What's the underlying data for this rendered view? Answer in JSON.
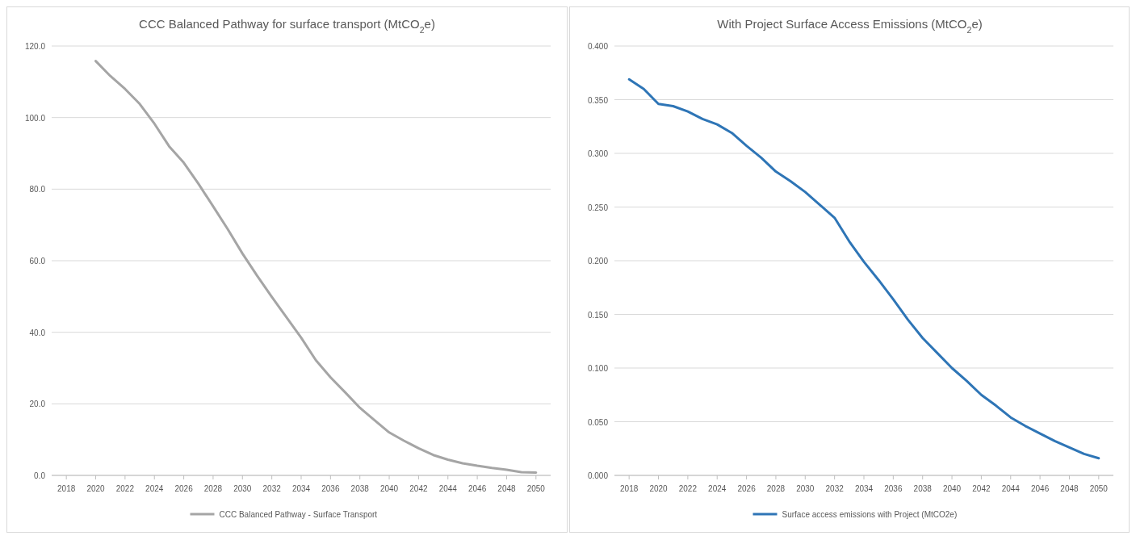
{
  "chart_data": [
    {
      "type": "line",
      "title": "CCC Balanced Pathway for surface transport (MtCO$_{2}$e)",
      "x": [
        2020,
        2021,
        2022,
        2023,
        2024,
        2025,
        2026,
        2027,
        2028,
        2029,
        2030,
        2031,
        2032,
        2033,
        2034,
        2035,
        2036,
        2037,
        2038,
        2039,
        2040,
        2041,
        2042,
        2043,
        2044,
        2045,
        2046,
        2047,
        2048,
        2049,
        2050
      ],
      "series": [
        {
          "name": "CCC Balanced Pathway - Surface Transport",
          "color": "#a5a5a5",
          "values": [
            115.8,
            111.6,
            108,
            103.8,
            98.3,
            92,
            87.4,
            81.5,
            75.2,
            68.8,
            62,
            55.8,
            49.9,
            44.2,
            38.5,
            32.2,
            27.4,
            23.2,
            18.9,
            15.4,
            12,
            9.7,
            7.6,
            5.7,
            4.4,
            3.4,
            2.7,
            2.1,
            1.6,
            0.9,
            0.8
          ]
        }
      ],
      "xlim": [
        2017,
        2051
      ],
      "xticks": [
        2018,
        2020,
        2022,
        2024,
        2026,
        2028,
        2030,
        2032,
        2034,
        2036,
        2038,
        2040,
        2042,
        2044,
        2046,
        2048,
        2050
      ],
      "ylim": [
        0,
        120
      ],
      "yticks": [
        {
          "value": 0,
          "label": "0.0"
        },
        {
          "value": 20,
          "label": "20.0"
        },
        {
          "value": 40,
          "label": "40.0"
        },
        {
          "value": 60,
          "label": "60.0"
        },
        {
          "value": 80,
          "label": "80.0"
        },
        {
          "value": 100,
          "label": "100.0"
        },
        {
          "value": 120,
          "label": "120.0"
        }
      ],
      "grid": "y",
      "legend": "bottom",
      "line_style": "solid"
    },
    {
      "type": "line",
      "title": "With Project Surface Access Emissions (MtCO$_{2}$e)",
      "x": [
        2018,
        2019,
        2020,
        2021,
        2022,
        2023,
        2024,
        2025,
        2026,
        2027,
        2028,
        2029,
        2030,
        2031,
        2032,
        2033,
        2034,
        2035,
        2036,
        2037,
        2038,
        2039,
        2040,
        2041,
        2042,
        2043,
        2044,
        2045,
        2046,
        2047,
        2048,
        2049,
        2050
      ],
      "series": [
        {
          "name": "Surface access emissions with Project (MtCO2e)",
          "color": "#2e75b6",
          "values": [
            0.369,
            0.36,
            0.346,
            0.344,
            0.339,
            0.332,
            0.327,
            0.319,
            0.307,
            0.296,
            0.283,
            0.274,
            0.264,
            0.252,
            0.24,
            0.218,
            0.199,
            0.182,
            0.164,
            0.145,
            0.128,
            0.114,
            0.1,
            0.088,
            0.075,
            0.065,
            0.054,
            0.046,
            0.039,
            0.032,
            0.026,
            0.02,
            0.016
          ]
        }
      ],
      "xlim": [
        2017,
        2051
      ],
      "xticks": [
        2018,
        2020,
        2022,
        2024,
        2026,
        2028,
        2030,
        2032,
        2034,
        2036,
        2038,
        2040,
        2042,
        2044,
        2046,
        2048,
        2050
      ],
      "ylim": [
        0,
        0.4
      ],
      "yticks": [
        {
          "value": 0,
          "label": "0.000"
        },
        {
          "value": 0.05,
          "label": "0.050"
        },
        {
          "value": 0.1,
          "label": "0.100"
        },
        {
          "value": 0.15,
          "label": "0.150"
        },
        {
          "value": 0.2,
          "label": "0.200"
        },
        {
          "value": 0.25,
          "label": "0.250"
        },
        {
          "value": 0.3,
          "label": "0.300"
        },
        {
          "value": 0.35,
          "label": "0.350"
        },
        {
          "value": 0.4,
          "label": "0.400"
        }
      ],
      "grid": "y",
      "legend": "bottom",
      "line_style": "solid"
    }
  ]
}
